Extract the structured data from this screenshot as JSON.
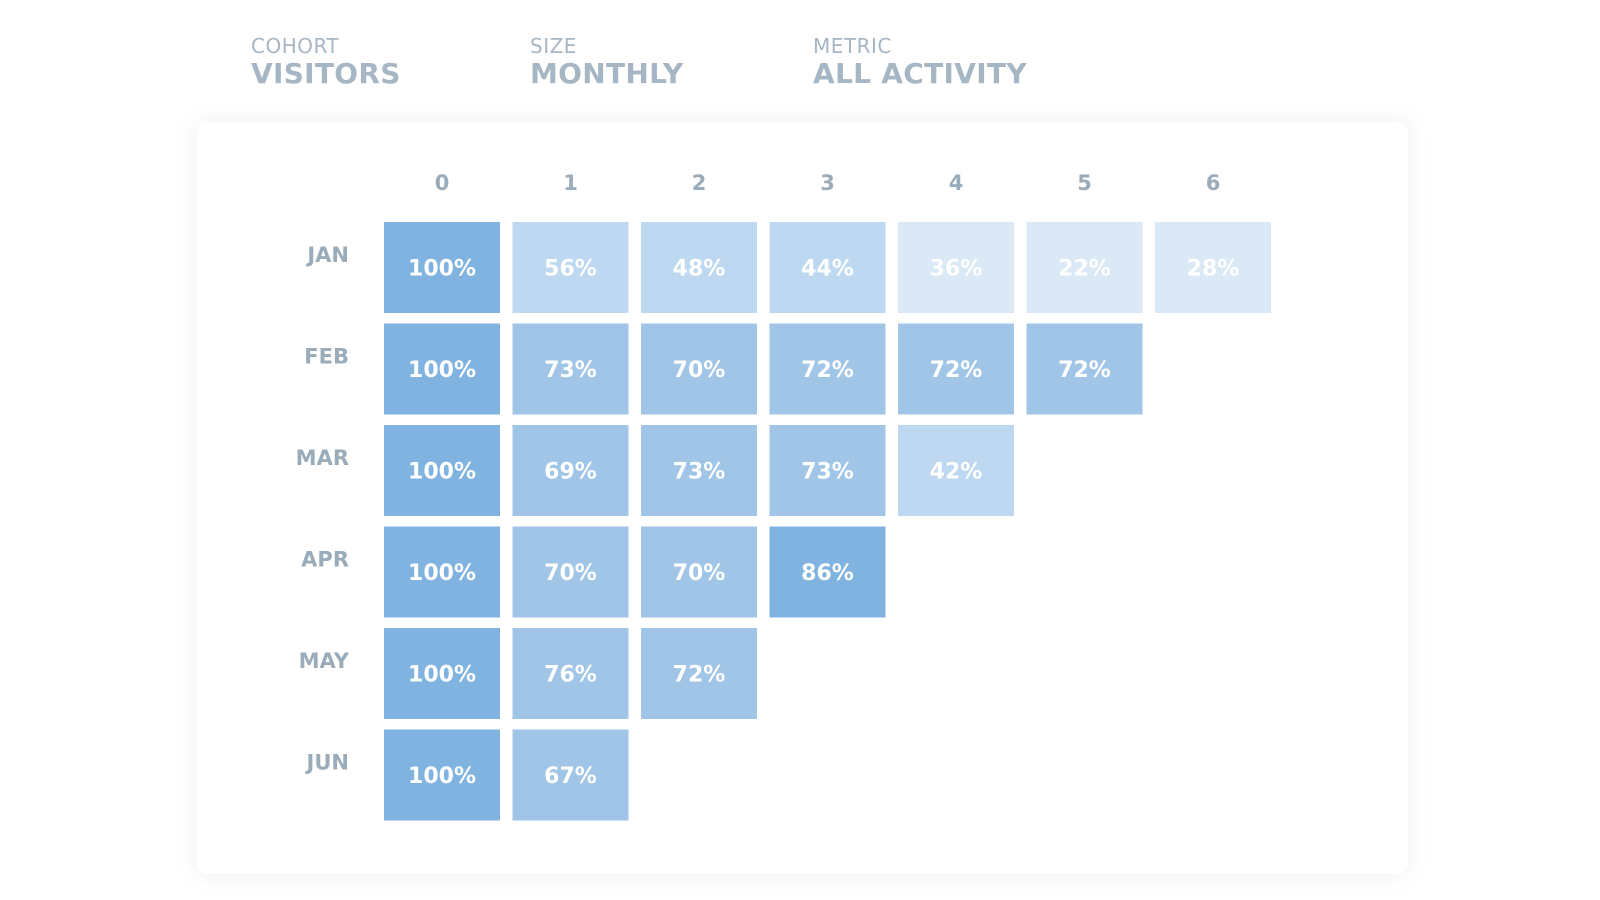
{
  "header": {
    "cohort": {
      "label": "COHORT",
      "value": "VISITORS"
    },
    "size": {
      "label": "SIZE",
      "value": "MONTHLY"
    },
    "metric": {
      "label": "METRIC",
      "value": "ALL ACTIVITY"
    }
  },
  "colors": {
    "text_muted": "#a6b6c4",
    "axis_text": "#9aabba",
    "cell_high": "#80b3e0",
    "cell_mid": "#a0c5e7",
    "cell_low": "#bdd8f0",
    "cell_faint": "#dbe8f5",
    "cell_text": "#ffffff"
  },
  "chart_data": {
    "type": "heatmap",
    "title": "",
    "x": [
      "0",
      "1",
      "2",
      "3",
      "4",
      "5",
      "6"
    ],
    "y": [
      "JAN",
      "FEB",
      "MAR",
      "APR",
      "MAY",
      "JUN"
    ],
    "values": [
      [
        100,
        56,
        48,
        44,
        36,
        22,
        28
      ],
      [
        100,
        73,
        70,
        72,
        72,
        72
      ],
      [
        100,
        69,
        73,
        73,
        42
      ],
      [
        100,
        70,
        70,
        86
      ],
      [
        100,
        76,
        72
      ],
      [
        100,
        67
      ]
    ],
    "value_suffix": "%",
    "xlabel": "",
    "ylabel": "",
    "legend": "none"
  }
}
